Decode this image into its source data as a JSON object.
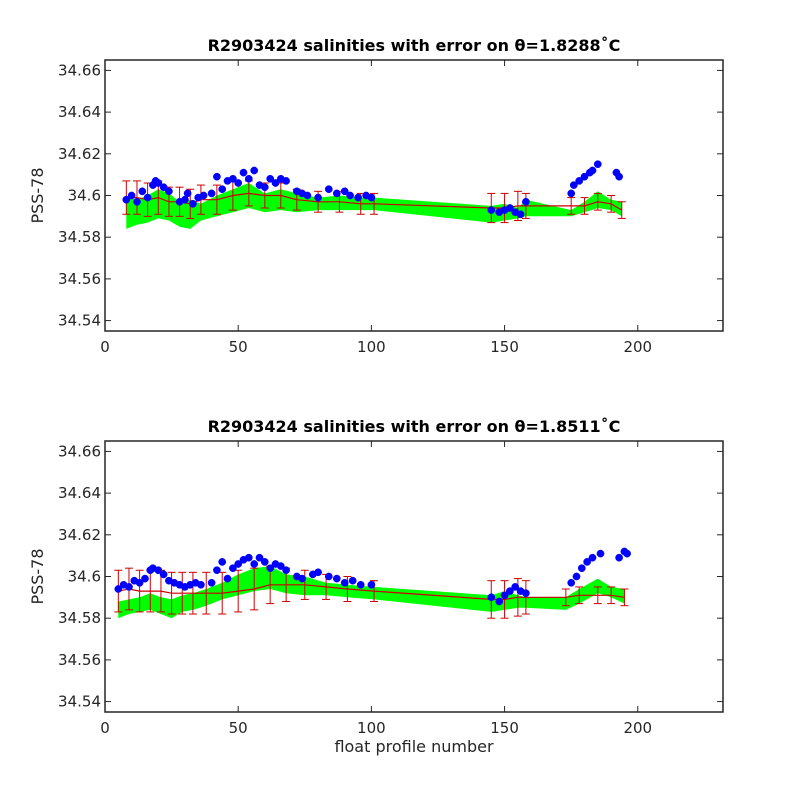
{
  "chart_data": [
    {
      "type": "scatter",
      "title": "R2903424 salinities with error on θ=1.8288˚C",
      "xlabel": "",
      "ylabel": "PSS-78",
      "xlim": [
        0,
        232
      ],
      "ylim": [
        34.535,
        34.665
      ],
      "xticks": [
        0,
        50,
        100,
        150,
        200
      ],
      "xtick_labels": [
        "0",
        "50",
        "100",
        "150",
        "200"
      ],
      "yticks": [
        34.54,
        34.56,
        34.58,
        34.6,
        34.62,
        34.64,
        34.66
      ],
      "ytick_labels": [
        "34.54",
        "34.56",
        "34.58",
        "34.6",
        "34.62",
        "34.64",
        "34.66"
      ],
      "grid": false,
      "colors": {
        "float": "#0000ff",
        "mapped": "#00ff00",
        "error": "#cc0000"
      },
      "series": [
        {
          "kind": "band",
          "x": [
            8,
            12,
            16,
            20,
            24,
            28,
            32,
            36,
            42,
            48,
            54,
            60,
            66,
            72,
            80,
            88,
            96,
            101,
            145,
            150,
            155,
            158,
            175,
            180,
            185,
            190,
            194
          ],
          "upper": [
            34.599,
            34.598,
            34.6,
            34.603,
            34.601,
            34.597,
            34.598,
            34.596,
            34.6,
            34.603,
            34.606,
            34.601,
            34.603,
            34.601,
            34.599,
            34.6,
            34.599,
            34.599,
            34.595,
            34.596,
            34.594,
            34.598,
            34.593,
            34.597,
            34.602,
            34.598,
            34.597
          ],
          "lower": [
            34.584,
            34.586,
            34.587,
            34.589,
            34.588,
            34.585,
            34.584,
            34.588,
            34.59,
            34.592,
            34.594,
            34.592,
            34.593,
            34.592,
            34.593,
            34.593,
            34.593,
            34.593,
            34.587,
            34.588,
            34.589,
            34.59,
            34.59,
            34.592,
            34.594,
            34.593,
            34.59
          ]
        },
        {
          "kind": "errorbar",
          "x": [
            8,
            12,
            16,
            20,
            24,
            28,
            32,
            36,
            42,
            48,
            54,
            60,
            66,
            72,
            80,
            88,
            96,
            101,
            145,
            150,
            155,
            158,
            175,
            180,
            185,
            190,
            194
          ],
          "y": [
            34.599,
            34.599,
            34.598,
            34.599,
            34.597,
            34.597,
            34.596,
            34.598,
            34.598,
            34.6,
            34.601,
            34.6,
            34.6,
            34.598,
            34.597,
            34.597,
            34.596,
            34.596,
            34.594,
            34.594,
            34.595,
            34.595,
            34.595,
            34.595,
            34.597,
            34.596,
            34.593
          ],
          "err": [
            0.008,
            0.008,
            0.008,
            0.008,
            0.007,
            0.007,
            0.007,
            0.007,
            0.007,
            0.007,
            0.006,
            0.006,
            0.006,
            0.005,
            0.005,
            0.005,
            0.005,
            0.005,
            0.007,
            0.007,
            0.007,
            0.006,
            0.004,
            0.004,
            0.004,
            0.004,
            0.004
          ]
        },
        {
          "kind": "points",
          "x": [
            8,
            10,
            12,
            14,
            16,
            18,
            19,
            20,
            22,
            24,
            28,
            30,
            31,
            33,
            35,
            37,
            40,
            42,
            44,
            46,
            48,
            50,
            52,
            54,
            56,
            58,
            60,
            62,
            64,
            66,
            68,
            72,
            74,
            76,
            80,
            84,
            87,
            90,
            92,
            95,
            98,
            100,
            145,
            148,
            150,
            152,
            154,
            156,
            158,
            175,
            176,
            178,
            180,
            182,
            183,
            185,
            192,
            193
          ],
          "y": [
            34.598,
            34.6,
            34.597,
            34.602,
            34.599,
            34.605,
            34.607,
            34.606,
            34.604,
            34.602,
            34.597,
            34.598,
            34.601,
            34.596,
            34.599,
            34.6,
            34.601,
            34.609,
            34.603,
            34.607,
            34.608,
            34.606,
            34.611,
            34.608,
            34.612,
            34.605,
            34.604,
            34.608,
            34.606,
            34.608,
            34.607,
            34.602,
            34.601,
            34.6,
            34.599,
            34.603,
            34.601,
            34.602,
            34.6,
            34.599,
            34.6,
            34.599,
            34.593,
            34.592,
            34.593,
            34.594,
            34.592,
            34.591,
            34.597,
            34.601,
            34.605,
            34.607,
            34.609,
            34.611,
            34.612,
            34.615,
            34.611,
            34.609
          ]
        }
      ]
    },
    {
      "type": "scatter",
      "title": "R2903424 salinities with error on θ=1.8511˚C",
      "xlabel": "float profile number",
      "ylabel": "PSS-78",
      "xlim": [
        0,
        232
      ],
      "ylim": [
        34.535,
        34.665
      ],
      "xticks": [
        0,
        50,
        100,
        150,
        200
      ],
      "xtick_labels": [
        "0",
        "50",
        "100",
        "150",
        "200"
      ],
      "yticks": [
        34.54,
        34.56,
        34.58,
        34.6,
        34.62,
        34.64,
        34.66
      ],
      "ytick_labels": [
        "34.54",
        "34.56",
        "34.58",
        "34.6",
        "34.62",
        "34.64",
        "34.66"
      ],
      "grid": false,
      "colors": {
        "float": "#0000ff",
        "mapped": "#00ff00",
        "error": "#cc0000"
      },
      "series": [
        {
          "kind": "band",
          "x": [
            5,
            9,
            13,
            17,
            21,
            25,
            29,
            33,
            38,
            44,
            50,
            56,
            62,
            68,
            75,
            83,
            91,
            101,
            145,
            150,
            155,
            158,
            173,
            178,
            185,
            190,
            195
          ],
          "upper": [
            34.588,
            34.589,
            34.59,
            34.592,
            34.59,
            34.589,
            34.591,
            34.592,
            34.594,
            34.597,
            34.601,
            34.604,
            34.605,
            34.601,
            34.6,
            34.597,
            34.596,
            34.595,
            34.591,
            34.593,
            34.591,
            34.59,
            34.59,
            34.594,
            34.599,
            34.595,
            34.594
          ],
          "lower": [
            34.58,
            34.582,
            34.583,
            34.584,
            34.582,
            34.58,
            34.583,
            34.584,
            34.586,
            34.589,
            34.591,
            34.593,
            34.594,
            34.592,
            34.591,
            34.591,
            34.59,
            34.589,
            34.583,
            34.584,
            34.585,
            34.585,
            34.584,
            34.587,
            34.592,
            34.59,
            34.587
          ]
        },
        {
          "kind": "errorbar",
          "x": [
            5,
            9,
            13,
            17,
            21,
            25,
            29,
            33,
            38,
            44,
            50,
            56,
            62,
            68,
            75,
            83,
            91,
            101,
            145,
            150,
            155,
            158,
            173,
            178,
            185,
            190,
            195
          ],
          "y": [
            34.593,
            34.594,
            34.593,
            34.593,
            34.593,
            34.592,
            34.592,
            34.592,
            34.592,
            34.592,
            34.593,
            34.594,
            34.596,
            34.596,
            34.596,
            34.595,
            34.594,
            34.593,
            34.589,
            34.589,
            34.59,
            34.59,
            34.59,
            34.591,
            34.591,
            34.591,
            34.59
          ],
          "err": [
            0.01,
            0.01,
            0.01,
            0.01,
            0.01,
            0.01,
            0.01,
            0.01,
            0.01,
            0.01,
            0.01,
            0.01,
            0.009,
            0.008,
            0.007,
            0.006,
            0.006,
            0.005,
            0.009,
            0.009,
            0.009,
            0.008,
            0.004,
            0.004,
            0.004,
            0.004,
            0.004
          ]
        },
        {
          "kind": "points",
          "x": [
            5,
            7,
            9,
            11,
            13,
            15,
            17,
            18,
            20,
            22,
            24,
            26,
            28,
            30,
            32,
            34,
            36,
            40,
            42,
            44,
            46,
            48,
            50,
            52,
            54,
            56,
            58,
            60,
            62,
            64,
            66,
            68,
            72,
            74,
            78,
            80,
            84,
            87,
            90,
            93,
            96,
            100,
            145,
            148,
            150,
            152,
            154,
            156,
            158,
            175,
            177,
            179,
            181,
            183,
            186,
            193,
            195,
            196
          ],
          "y": [
            34.594,
            34.596,
            34.595,
            34.598,
            34.597,
            34.599,
            34.603,
            34.604,
            34.603,
            34.601,
            34.598,
            34.597,
            34.596,
            34.595,
            34.596,
            34.597,
            34.596,
            34.597,
            34.603,
            34.607,
            34.599,
            34.604,
            34.606,
            34.608,
            34.609,
            34.606,
            34.609,
            34.607,
            34.604,
            34.606,
            34.605,
            34.603,
            34.6,
            34.599,
            34.601,
            34.602,
            34.6,
            34.599,
            34.597,
            34.598,
            34.596,
            34.596,
            34.59,
            34.588,
            34.591,
            34.593,
            34.595,
            34.593,
            34.592,
            34.597,
            34.6,
            34.604,
            34.607,
            34.609,
            34.611,
            34.609,
            34.612,
            34.611
          ]
        }
      ]
    }
  ]
}
